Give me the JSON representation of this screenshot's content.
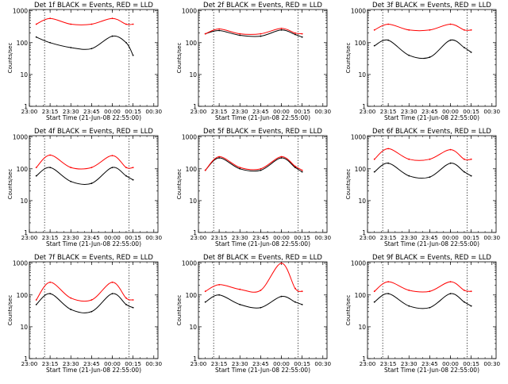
{
  "figure": {
    "background": "#ffffff",
    "ink_color": "#000000",
    "events_color": "#000000",
    "lld_color": "#ff0000",
    "y_axis_label": "Counts/sec",
    "x_axis_label": "Start Time (21-Jun-08 22:55:00)",
    "x_tick_labels": [
      "23:00",
      "23:15",
      "23:30",
      "23:45",
      "00:00",
      "00:15",
      "00:30"
    ],
    "y_tick_labels": [
      "1",
      "10",
      "100",
      "1000"
    ]
  },
  "chart_data": [
    {
      "type": "line",
      "scale": "log-y",
      "title": "Det 1f BLACK = Events, RED = LLD",
      "x": [
        "23:05",
        "23:15",
        "23:30",
        "23:45",
        "00:00",
        "00:10",
        "00:15"
      ],
      "xlim": [
        "23:00",
        "00:33"
      ],
      "ylim": [
        1,
        1100
      ],
      "vlines": [
        "23:11",
        "00:12"
      ],
      "series": [
        {
          "name": "Events",
          "values": [
            150,
            100,
            70,
            65,
            160,
            100,
            40
          ]
        },
        {
          "name": "LLD",
          "values": [
            380,
            580,
            380,
            380,
            580,
            380,
            380
          ]
        }
      ]
    },
    {
      "type": "line",
      "scale": "log-y",
      "title": "Det 2f BLACK = Events, RED = LLD",
      "x": [
        "23:05",
        "23:15",
        "23:30",
        "23:45",
        "00:00",
        "00:10",
        "00:15"
      ],
      "xlim": [
        "23:00",
        "00:33"
      ],
      "ylim": [
        1,
        1100
      ],
      "vlines": [
        "23:11",
        "00:12"
      ],
      "series": [
        {
          "name": "Events",
          "values": [
            190,
            240,
            170,
            160,
            250,
            180,
            150
          ]
        },
        {
          "name": "LLD",
          "values": [
            190,
            270,
            190,
            190,
            280,
            200,
            190
          ]
        }
      ]
    },
    {
      "type": "line",
      "scale": "log-y",
      "title": "Det 3f BLACK = Events, RED = LLD",
      "x": [
        "23:05",
        "23:15",
        "23:30",
        "23:45",
        "00:00",
        "00:10",
        "00:15"
      ],
      "xlim": [
        "23:00",
        "00:33"
      ],
      "ylim": [
        1,
        1100
      ],
      "vlines": [
        "23:11",
        "00:12"
      ],
      "series": [
        {
          "name": "Events",
          "values": [
            80,
            120,
            40,
            35,
            120,
            70,
            50
          ]
        },
        {
          "name": "LLD",
          "values": [
            250,
            380,
            250,
            250,
            380,
            250,
            250
          ]
        }
      ]
    },
    {
      "type": "line",
      "scale": "log-y",
      "title": "Det 4f BLACK = Events, RED = LLD",
      "x": [
        "23:05",
        "23:15",
        "23:30",
        "23:45",
        "00:00",
        "00:10",
        "00:15"
      ],
      "xlim": [
        "23:00",
        "00:33"
      ],
      "ylim": [
        1,
        1100
      ],
      "vlines": [
        "23:11",
        "00:12"
      ],
      "series": [
        {
          "name": "Events",
          "values": [
            60,
            110,
            40,
            35,
            110,
            60,
            45
          ]
        },
        {
          "name": "LLD",
          "values": [
            110,
            270,
            110,
            110,
            260,
            110,
            110
          ]
        }
      ]
    },
    {
      "type": "line",
      "scale": "log-y",
      "title": "Det 5f BLACK = Events, RED = LLD",
      "x": [
        "23:05",
        "23:15",
        "23:30",
        "23:45",
        "00:00",
        "00:10",
        "00:15"
      ],
      "xlim": [
        "23:00",
        "00:33"
      ],
      "ylim": [
        1,
        1100
      ],
      "vlines": [
        "23:11",
        "00:12"
      ],
      "series": [
        {
          "name": "Events",
          "values": [
            90,
            220,
            100,
            90,
            220,
            110,
            80
          ]
        },
        {
          "name": "LLD",
          "values": [
            90,
            240,
            110,
            100,
            240,
            120,
            90
          ]
        }
      ]
    },
    {
      "type": "line",
      "scale": "log-y",
      "title": "Det 6f BLACK = Events, RED = LLD",
      "x": [
        "23:05",
        "23:15",
        "23:30",
        "23:45",
        "00:00",
        "00:10",
        "00:15"
      ],
      "xlim": [
        "23:00",
        "00:33"
      ],
      "ylim": [
        1,
        1100
      ],
      "vlines": [
        "23:11",
        "00:12"
      ],
      "series": [
        {
          "name": "Events",
          "values": [
            80,
            150,
            60,
            55,
            150,
            80,
            60
          ]
        },
        {
          "name": "LLD",
          "values": [
            200,
            430,
            200,
            200,
            400,
            200,
            200
          ]
        }
      ]
    },
    {
      "type": "line",
      "scale": "log-y",
      "title": "Det 7f BLACK = Events, RED = LLD",
      "x": [
        "23:05",
        "23:15",
        "23:30",
        "23:45",
        "00:00",
        "00:10",
        "00:15"
      ],
      "xlim": [
        "23:00",
        "00:33"
      ],
      "ylim": [
        1,
        1100
      ],
      "vlines": [
        "23:11",
        "00:12"
      ],
      "series": [
        {
          "name": "Events",
          "values": [
            50,
            110,
            35,
            30,
            110,
            50,
            40
          ]
        },
        {
          "name": "LLD",
          "values": [
            70,
            250,
            80,
            70,
            250,
            80,
            70
          ]
        }
      ]
    },
    {
      "type": "line",
      "scale": "log-y",
      "title": "Det 8f BLACK = Events, RED = LLD",
      "x": [
        "23:05",
        "23:15",
        "23:30",
        "23:45",
        "00:00",
        "00:10",
        "00:15"
      ],
      "xlim": [
        "23:00",
        "00:33"
      ],
      "ylim": [
        1,
        1100
      ],
      "vlines": [
        "23:11",
        "00:12"
      ],
      "series": [
        {
          "name": "Events",
          "values": [
            60,
            100,
            50,
            40,
            90,
            60,
            50
          ]
        },
        {
          "name": "LLD",
          "values": [
            130,
            210,
            150,
            140,
            1000,
            160,
            130
          ]
        }
      ]
    },
    {
      "type": "line",
      "scale": "log-y",
      "title": "Det 9f BLACK = Events, RED = LLD",
      "x": [
        "23:05",
        "23:15",
        "23:30",
        "23:45",
        "00:00",
        "00:10",
        "00:15"
      ],
      "xlim": [
        "23:00",
        "00:33"
      ],
      "ylim": [
        1,
        1100
      ],
      "vlines": [
        "23:11",
        "00:12"
      ],
      "series": [
        {
          "name": "Events",
          "values": [
            60,
            110,
            45,
            40,
            110,
            60,
            45
          ]
        },
        {
          "name": "LLD",
          "values": [
            130,
            260,
            140,
            130,
            260,
            140,
            130
          ]
        }
      ]
    }
  ]
}
